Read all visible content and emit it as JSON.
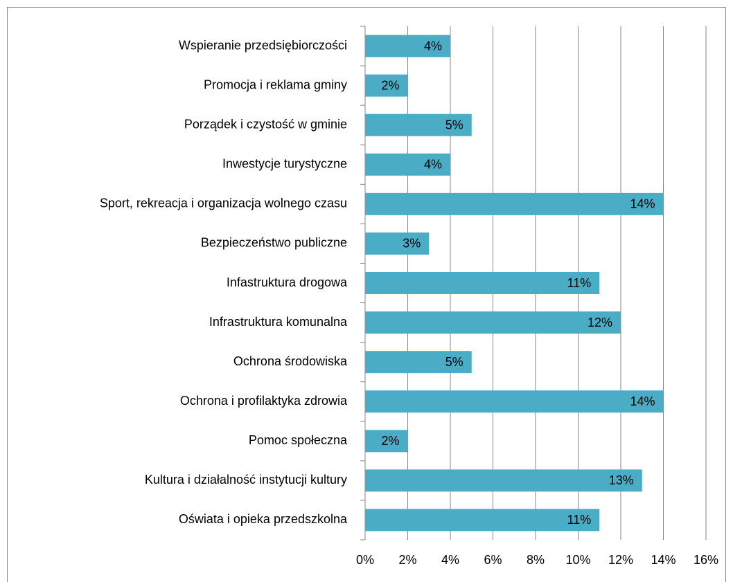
{
  "chart_data": {
    "type": "bar",
    "orientation": "horizontal",
    "categories": [
      "Wspieranie przedsiębiorczości",
      "Promocja i reklama gminy",
      "Porządek i czystość w gminie",
      "Inwestycje turystyczne",
      "Sport, rekreacja i organizacja wolnego czasu",
      "Bezpieczeństwo publiczne",
      "Infastruktura drogowa",
      "Infrastruktura komunalna",
      "Ochrona środowiska",
      "Ochrona i profilaktyka zdrowia",
      "Pomoc społeczna",
      "Kultura i działalność instytucji kultury",
      "Oświata i opieka przedszkolna"
    ],
    "values": [
      4,
      2,
      5,
      4,
      14,
      3,
      11,
      12,
      5,
      14,
      2,
      13,
      11
    ],
    "value_labels": [
      "4%",
      "2%",
      "5%",
      "4%",
      "14%",
      "3%",
      "11%",
      "12%",
      "5%",
      "14%",
      "2%",
      "13%",
      "11%"
    ],
    "color": "#4bacc6",
    "xlim": [
      0,
      16
    ],
    "xticks": [
      {
        "value": 0,
        "label": "0%"
      },
      {
        "value": 2,
        "label": "2%"
      },
      {
        "value": 4,
        "label": "4%"
      },
      {
        "value": 6,
        "label": "6%"
      },
      {
        "value": 8,
        "label": "8%"
      },
      {
        "value": 10,
        "label": "10%"
      },
      {
        "value": 12,
        "label": "12%"
      },
      {
        "value": 14,
        "label": "14%"
      },
      {
        "value": 16,
        "label": "16%"
      }
    ],
    "grid": true
  }
}
